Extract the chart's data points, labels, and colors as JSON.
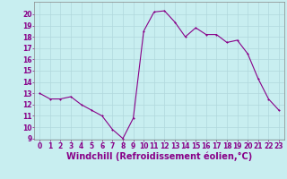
{
  "x": [
    0,
    1,
    2,
    3,
    4,
    5,
    6,
    7,
    8,
    9,
    10,
    11,
    12,
    13,
    14,
    15,
    16,
    17,
    18,
    19,
    20,
    21,
    22,
    23
  ],
  "y": [
    13,
    12.5,
    12.5,
    12.7,
    12,
    11.5,
    11,
    9.8,
    9,
    10.8,
    18.5,
    20.2,
    20.3,
    19.3,
    18,
    18.8,
    18.2,
    18.2,
    17.5,
    17.7,
    16.5,
    14.3,
    12.5,
    11.5
  ],
  "bg_color": "#c8eef0",
  "grid_color": "#b0d8dc",
  "line_color": "#880088",
  "marker_color": "#880088",
  "xlabel": "Windchill (Refroidissement éolien,°C)",
  "ylim_min": 9,
  "ylim_max": 21,
  "xlim_min": -0.5,
  "xlim_max": 23.5,
  "yticks": [
    9,
    10,
    11,
    12,
    13,
    14,
    15,
    16,
    17,
    18,
    19,
    20
  ],
  "xticks": [
    0,
    1,
    2,
    3,
    4,
    5,
    6,
    7,
    8,
    9,
    10,
    11,
    12,
    13,
    14,
    15,
    16,
    17,
    18,
    19,
    20,
    21,
    22,
    23
  ],
  "tick_color": "#880088",
  "xlabel_color": "#880088",
  "tick_fontsize": 5.5,
  "xlabel_fontsize": 7.0,
  "spine_color": "#888888",
  "marker_size": 2.0,
  "line_width": 0.8
}
